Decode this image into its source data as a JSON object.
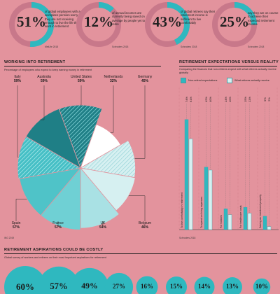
{
  "stats": [
    {
      "pct": "51%",
      "value": 51,
      "text": "of global employees with a workplace pension worry they are not receiving enough to live the life they want in retirement",
      "source": "MetLife 2018"
    },
    {
      "pct": "12%",
      "value": 12,
      "text": "of annual incomes are currently being saved on average by people yet to retire",
      "source": "Schroders 2018"
    },
    {
      "pct": "43%",
      "value": 43,
      "text": "of global retirees say their retirement income is sufficient to live comfortably",
      "source": "Schroders 2018"
    },
    {
      "pct": "25%",
      "value": 25,
      "text": "say they are on course to achieve their expected retirement income",
      "source": "Schroders 2018"
    }
  ],
  "colors": {
    "background": "#e3939d",
    "teal": "#4fc3c8",
    "dark_teal": "#1f7f86",
    "ring_bg": "#c8788a"
  },
  "working": {
    "title": "WORKING INTO RETIREMENT",
    "subtitle": "Percentage of employees who expect to keep earning money in retirement",
    "source": "ING 2019"
  },
  "expectations": {
    "title": "RETIREMENT EXPECTATIONS VERSUS REALITY",
    "subtitle": "Comparing the finances that non-retirees expect with what retirees actually receive globally",
    "source": "Schroders 2018"
  },
  "aspirations": {
    "title": "RETIREMENT ASPIRATIONS COULD BE COSTLY",
    "subtitle": "Global survey of workers and retirees on their most important aspirations for retirement"
  },
  "chart_data": [
    {
      "type": "pie",
      "labels": [
        "United States",
        "Netherlands",
        "Germany",
        "Belgium",
        "UK",
        "France",
        "Spain",
        "Italy",
        "Australia"
      ],
      "values": [
        59,
        32,
        45,
        46,
        54,
        57,
        57,
        59,
        59
      ],
      "value_labels": [
        "59%",
        "32%",
        "45%",
        "46%",
        "54%",
        "57%",
        "57%",
        "59%",
        "59%"
      ]
    },
    {
      "type": "bar",
      "categories": [
        "To live comfortably in retirement",
        "To spend on living expenses",
        "For hobbies",
        "For healthcare costs",
        "Saving as investment property"
      ],
      "series": [
        {
          "name": "Non-retired expectations",
          "values": [
            74,
            42,
            14,
            15,
            9
          ]
        },
        {
          "name": "What retirees actually receive",
          "values": [
            61,
            40,
            10,
            11,
            2
          ]
        }
      ],
      "top_labels": [
        [
          "74%",
          "61%"
        ],
        [
          "42%",
          "40%"
        ],
        [
          "14%",
          "10%"
        ],
        [
          "15%",
          "11%"
        ],
        [
          "9%",
          "2%"
        ]
      ],
      "ylim": [
        0,
        100
      ],
      "legend": "top-left"
    },
    {
      "type": "bubble",
      "values": [
        60,
        57,
        49,
        27,
        16,
        15,
        14,
        13,
        10
      ],
      "value_labels": [
        "60%",
        "57%",
        "49%",
        "27%",
        "16%",
        "15%",
        "14%",
        "13%",
        "10%"
      ]
    }
  ]
}
